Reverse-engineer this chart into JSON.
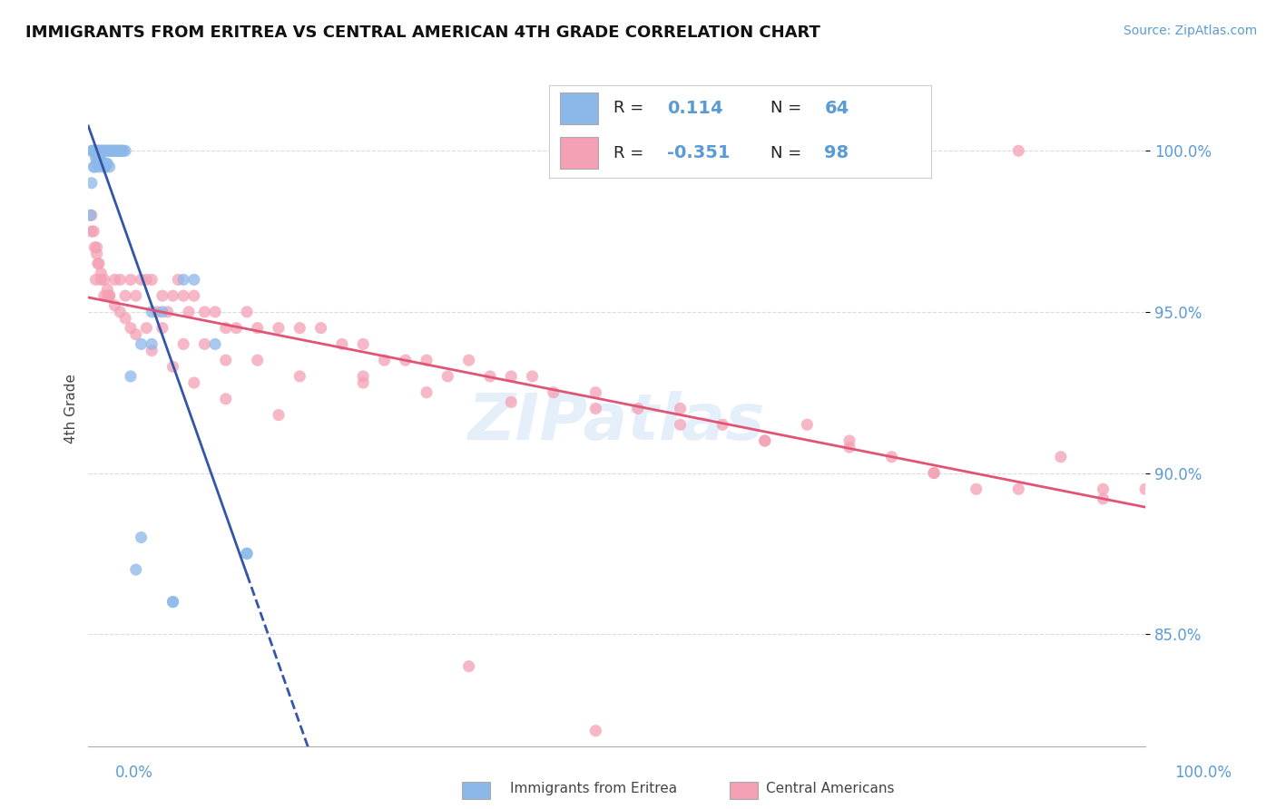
{
  "title": "IMMIGRANTS FROM ERITREA VS CENTRAL AMERICAN 4TH GRADE CORRELATION CHART",
  "source": "Source: ZipAtlas.com",
  "ylabel": "4th Grade",
  "ytick_labels": [
    "100.0%",
    "95.0%",
    "90.0%",
    "85.0%"
  ],
  "ytick_values": [
    1.0,
    0.95,
    0.9,
    0.85
  ],
  "xrange": [
    0.0,
    1.0
  ],
  "yrange": [
    0.815,
    1.025
  ],
  "eritrea_color": "#8BB8E8",
  "central_color": "#F4A0B5",
  "eritrea_line_color": "#3355AA",
  "central_line_color": "#E05575",
  "background_color": "#FFFFFF",
  "grid_color": "#CCCCCC",
  "title_color": "#111111",
  "axis_label_color": "#5B9BD5",
  "watermark": "ZIPatlas",
  "eritrea_x": [
    0.002,
    0.003,
    0.003,
    0.004,
    0.005,
    0.005,
    0.006,
    0.006,
    0.007,
    0.007,
    0.008,
    0.008,
    0.009,
    0.009,
    0.01,
    0.01,
    0.01,
    0.011,
    0.011,
    0.012,
    0.012,
    0.013,
    0.013,
    0.014,
    0.014,
    0.015,
    0.015,
    0.016,
    0.016,
    0.017,
    0.017,
    0.018,
    0.018,
    0.019,
    0.02,
    0.02,
    0.021,
    0.022,
    0.023,
    0.024,
    0.025,
    0.026,
    0.027,
    0.028,
    0.029,
    0.03,
    0.031,
    0.032,
    0.033,
    0.035,
    0.04,
    0.045,
    0.05,
    0.06,
    0.07,
    0.08,
    0.09,
    0.1,
    0.12,
    0.15,
    0.05,
    0.06,
    0.08,
    0.15
  ],
  "eritrea_y": [
    0.98,
    1.0,
    0.99,
    1.0,
    1.0,
    0.995,
    1.0,
    0.995,
    1.0,
    0.998,
    1.0,
    0.997,
    1.0,
    0.996,
    1.0,
    0.998,
    0.995,
    1.0,
    0.997,
    1.0,
    0.997,
    1.0,
    0.996,
    1.0,
    0.996,
    1.0,
    0.995,
    1.0,
    0.995,
    1.0,
    0.996,
    1.0,
    0.996,
    1.0,
    1.0,
    0.995,
    1.0,
    1.0,
    1.0,
    1.0,
    1.0,
    1.0,
    1.0,
    1.0,
    1.0,
    1.0,
    1.0,
    1.0,
    1.0,
    1.0,
    0.93,
    0.87,
    0.88,
    0.95,
    0.95,
    0.86,
    0.96,
    0.96,
    0.94,
    0.875,
    0.94,
    0.94,
    0.86,
    0.875
  ],
  "central_x": [
    0.003,
    0.005,
    0.007,
    0.008,
    0.01,
    0.012,
    0.015,
    0.018,
    0.02,
    0.025,
    0.03,
    0.035,
    0.04,
    0.045,
    0.05,
    0.055,
    0.06,
    0.065,
    0.07,
    0.075,
    0.08,
    0.085,
    0.09,
    0.095,
    0.1,
    0.11,
    0.12,
    0.13,
    0.14,
    0.15,
    0.16,
    0.18,
    0.2,
    0.22,
    0.24,
    0.26,
    0.28,
    0.3,
    0.32,
    0.34,
    0.36,
    0.38,
    0.4,
    0.42,
    0.44,
    0.48,
    0.52,
    0.56,
    0.6,
    0.64,
    0.68,
    0.72,
    0.76,
    0.8,
    0.84,
    0.88,
    0.92,
    0.96,
    1.0,
    0.006,
    0.009,
    0.015,
    0.02,
    0.03,
    0.04,
    0.055,
    0.07,
    0.09,
    0.11,
    0.13,
    0.16,
    0.2,
    0.26,
    0.32,
    0.4,
    0.48,
    0.56,
    0.64,
    0.72,
    0.8,
    0.88,
    0.96,
    0.003,
    0.008,
    0.012,
    0.018,
    0.025,
    0.035,
    0.045,
    0.06,
    0.08,
    0.1,
    0.13,
    0.18,
    0.26,
    0.36,
    0.48
  ],
  "central_y": [
    0.98,
    0.975,
    0.96,
    0.97,
    0.965,
    0.96,
    0.96,
    0.955,
    0.955,
    0.96,
    0.96,
    0.955,
    0.96,
    0.955,
    0.96,
    0.96,
    0.96,
    0.95,
    0.955,
    0.95,
    0.955,
    0.96,
    0.955,
    0.95,
    0.955,
    0.95,
    0.95,
    0.945,
    0.945,
    0.95,
    0.945,
    0.945,
    0.945,
    0.945,
    0.94,
    0.94,
    0.935,
    0.935,
    0.935,
    0.93,
    0.935,
    0.93,
    0.93,
    0.93,
    0.925,
    0.925,
    0.92,
    0.92,
    0.915,
    0.91,
    0.915,
    0.91,
    0.905,
    0.9,
    0.895,
    1.0,
    0.905,
    0.895,
    0.895,
    0.97,
    0.965,
    0.955,
    0.955,
    0.95,
    0.945,
    0.945,
    0.945,
    0.94,
    0.94,
    0.935,
    0.935,
    0.93,
    0.928,
    0.925,
    0.922,
    0.92,
    0.915,
    0.91,
    0.908,
    0.9,
    0.895,
    0.892,
    0.975,
    0.968,
    0.962,
    0.957,
    0.952,
    0.948,
    0.943,
    0.938,
    0.933,
    0.928,
    0.923,
    0.918,
    0.93,
    0.84,
    0.82
  ]
}
